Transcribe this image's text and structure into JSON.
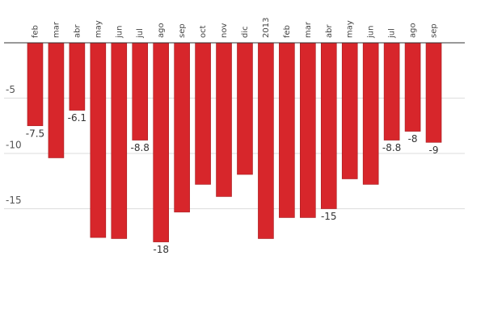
{
  "chart_data": {
    "type": "bar",
    "categories": [
      "feb",
      "mar",
      "abr",
      "may",
      "jun",
      "jul",
      "ago",
      "sep",
      "oct",
      "nov",
      "dic",
      "2013",
      "feb",
      "mar",
      "abr",
      "may",
      "jun",
      "jul",
      "ago",
      "sep"
    ],
    "values": [
      -7.5,
      -10.4,
      -6.1,
      -17.6,
      -17.7,
      -8.8,
      -18,
      -15.3,
      -12.8,
      -13.9,
      -11.9,
      -17.7,
      -15.8,
      -15.8,
      -15,
      -12.3,
      -12.8,
      -8.8,
      -8,
      -9
    ],
    "value_labels": [
      "-7.5",
      null,
      "-6.1",
      null,
      null,
      "-8.8",
      "-18",
      null,
      null,
      null,
      null,
      null,
      null,
      null,
      "-15",
      null,
      null,
      "-8.8",
      "-8",
      "-9"
    ],
    "color": "#d7262b",
    "ylim": [
      -20,
      0
    ],
    "yticks": [
      -5,
      -10,
      -15
    ],
    "grid": true
  }
}
